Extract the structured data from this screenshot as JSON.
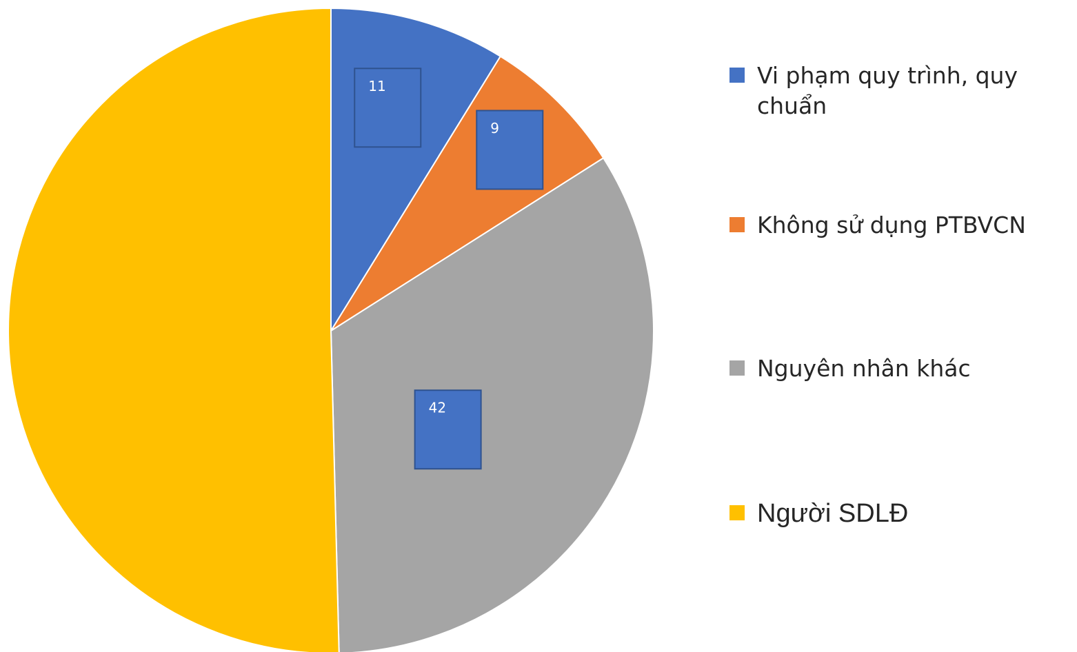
{
  "chart_data": {
    "type": "pie",
    "categories": [
      "Vi phạm quy trình, quy chuẩn",
      "Không sử dụng PTBVCN",
      "Nguyên nhân khác",
      "Người SDLĐ"
    ],
    "values": [
      11,
      9,
      42,
      63
    ],
    "value_labels": [
      "11",
      "9",
      "42",
      null
    ],
    "colors": [
      "#4472c4",
      "#ed7d31",
      "#a5a5a5",
      "#ffc000"
    ],
    "legend": "right"
  }
}
